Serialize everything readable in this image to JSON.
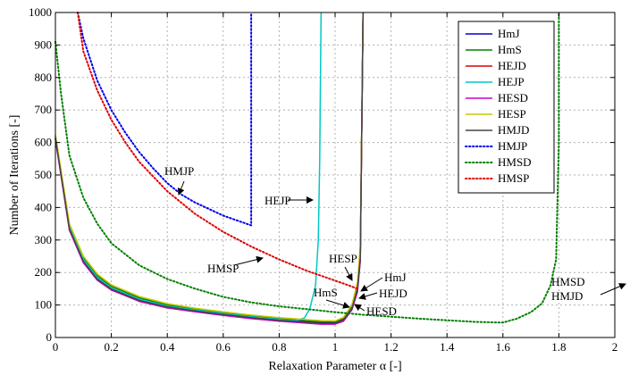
{
  "chart_data": {
    "type": "line",
    "xlabel": "Relaxation Parameter α [-]",
    "ylabel": "Number of Iterations [-]",
    "xlim": [
      0,
      2
    ],
    "ylim": [
      0,
      1000
    ],
    "xticks": [
      "0",
      "0.2",
      "0.4",
      "0.6",
      "0.8",
      "1",
      "1.2",
      "1.4",
      "1.6",
      "1.8",
      "2"
    ],
    "yticks": [
      "0",
      "100",
      "200",
      "300",
      "400",
      "500",
      "600",
      "700",
      "800",
      "900",
      "1000"
    ],
    "grid": true,
    "legend_position": "top-right",
    "series": [
      {
        "name": "HmJ",
        "color": "#0000cc",
        "style": "solid",
        "x": [
          0,
          0.05,
          0.1,
          0.15,
          0.2,
          0.3,
          0.4,
          0.5,
          0.6,
          0.7,
          0.8,
          0.9,
          0.95,
          1.0,
          1.03,
          1.06,
          1.08,
          1.09,
          1.1
        ],
        "y": [
          615,
          335,
          235,
          180,
          150,
          115,
          95,
          83,
          72,
          62,
          54,
          48,
          45,
          45,
          55,
          90,
          150,
          250,
          1000
        ]
      },
      {
        "name": "HmS",
        "color": "#008000",
        "style": "solid",
        "x": [
          0,
          0.05,
          0.1,
          0.15,
          0.2,
          0.3,
          0.4,
          0.5,
          0.6,
          0.7,
          0.8,
          0.9,
          0.95,
          1.0,
          1.03,
          1.06,
          1.08,
          1.09,
          1.1
        ],
        "y": [
          620,
          345,
          245,
          190,
          158,
          122,
          100,
          87,
          76,
          66,
          58,
          52,
          49,
          48,
          58,
          95,
          160,
          260,
          1000
        ]
      },
      {
        "name": "HEJD",
        "color": "#e00000",
        "style": "solid",
        "x": [
          0,
          0.05,
          0.1,
          0.15,
          0.2,
          0.3,
          0.4,
          0.5,
          0.6,
          0.7,
          0.8,
          0.9,
          0.95,
          1.0,
          1.03,
          1.06,
          1.08,
          1.09,
          1.1
        ],
        "y": [
          612,
          332,
          232,
          178,
          148,
          113,
          93,
          81,
          70,
          60,
          52,
          46,
          43,
          43,
          53,
          88,
          145,
          240,
          1000
        ]
      },
      {
        "name": "HEJP",
        "color": "#00c8c8",
        "style": "solid",
        "x": [
          0,
          0.05,
          0.1,
          0.15,
          0.2,
          0.3,
          0.4,
          0.5,
          0.6,
          0.7,
          0.8,
          0.86,
          0.89,
          0.91,
          0.93,
          0.94,
          0.945,
          0.95
        ],
        "y": [
          618,
          340,
          240,
          185,
          153,
          118,
          97,
          85,
          74,
          64,
          56,
          52,
          60,
          90,
          160,
          300,
          550,
          1000
        ]
      },
      {
        "name": "HESD",
        "color": "#cc00cc",
        "style": "solid",
        "x": [
          0,
          0.05,
          0.1,
          0.15,
          0.2,
          0.3,
          0.4,
          0.5,
          0.6,
          0.7,
          0.8,
          0.9,
          0.95,
          1.0,
          1.03,
          1.06,
          1.08,
          1.09,
          1.1
        ],
        "y": [
          610,
          330,
          230,
          176,
          146,
          111,
          91,
          79,
          68,
          58,
          50,
          44,
          41,
          41,
          50,
          85,
          140,
          235,
          1000
        ]
      },
      {
        "name": "HESP",
        "color": "#c8c800",
        "style": "solid",
        "x": [
          0,
          0.05,
          0.1,
          0.15,
          0.2,
          0.3,
          0.4,
          0.5,
          0.6,
          0.7,
          0.8,
          0.9,
          0.95,
          1.0,
          1.03,
          1.06,
          1.08,
          1.09,
          1.1
        ],
        "y": [
          625,
          350,
          250,
          195,
          162,
          126,
          104,
          90,
          79,
          69,
          61,
          55,
          52,
          51,
          62,
          100,
          170,
          280,
          1000
        ]
      },
      {
        "name": "HMJD",
        "color": "#444444",
        "style": "solid",
        "x": [
          0,
          0.05,
          0.1,
          0.15,
          0.2,
          0.3,
          0.4,
          0.5,
          0.6,
          0.7,
          0.8,
          0.9,
          0.95,
          1.0,
          1.03,
          1.06,
          1.08,
          1.09,
          1.1
        ],
        "y": [
          614,
          334,
          234,
          179,
          149,
          114,
          94,
          82,
          71,
          61,
          53,
          47,
          44,
          44,
          54,
          89,
          148,
          245,
          1000
        ]
      },
      {
        "name": "HMJP",
        "color": "#0000ee",
        "style": "dotted",
        "x": [
          0.08,
          0.1,
          0.15,
          0.2,
          0.25,
          0.3,
          0.35,
          0.4,
          0.45,
          0.5,
          0.55,
          0.6,
          0.65,
          0.7,
          0.7
        ],
        "y": [
          1000,
          920,
          790,
          700,
          630,
          570,
          520,
          475,
          440,
          415,
          395,
          375,
          360,
          345,
          1000
        ]
      },
      {
        "name": "HMSD",
        "color": "#008000",
        "style": "dotted",
        "x": [
          0,
          0.02,
          0.05,
          0.1,
          0.15,
          0.2,
          0.3,
          0.4,
          0.5,
          0.6,
          0.7,
          0.8,
          0.9,
          1.0,
          1.1,
          1.2,
          1.3,
          1.4,
          1.5,
          1.6,
          1.65,
          1.7,
          1.74,
          1.77,
          1.79,
          1.8,
          1.8
        ],
        "y": [
          910,
          750,
          560,
          430,
          350,
          290,
          222,
          180,
          150,
          125,
          108,
          96,
          87,
          78,
          70,
          64,
          58,
          53,
          48,
          46,
          58,
          78,
          105,
          160,
          240,
          600,
          1000
        ]
      },
      {
        "name": "HMSP",
        "color": "#e00000",
        "style": "dotted",
        "x": [
          0.08,
          0.1,
          0.15,
          0.2,
          0.25,
          0.3,
          0.4,
          0.5,
          0.6,
          0.7,
          0.8,
          0.9,
          1.0,
          1.05,
          1.08
        ],
        "y": [
          1000,
          880,
          760,
          670,
          600,
          540,
          450,
          380,
          325,
          280,
          240,
          205,
          175,
          160,
          150
        ]
      }
    ],
    "annotations": [
      "HMJP",
      "HEJP",
      "HMSP",
      "HESP",
      "HmJ",
      "HmS",
      "HEJD",
      "HESD",
      "HMSD",
      "HMJD"
    ]
  }
}
